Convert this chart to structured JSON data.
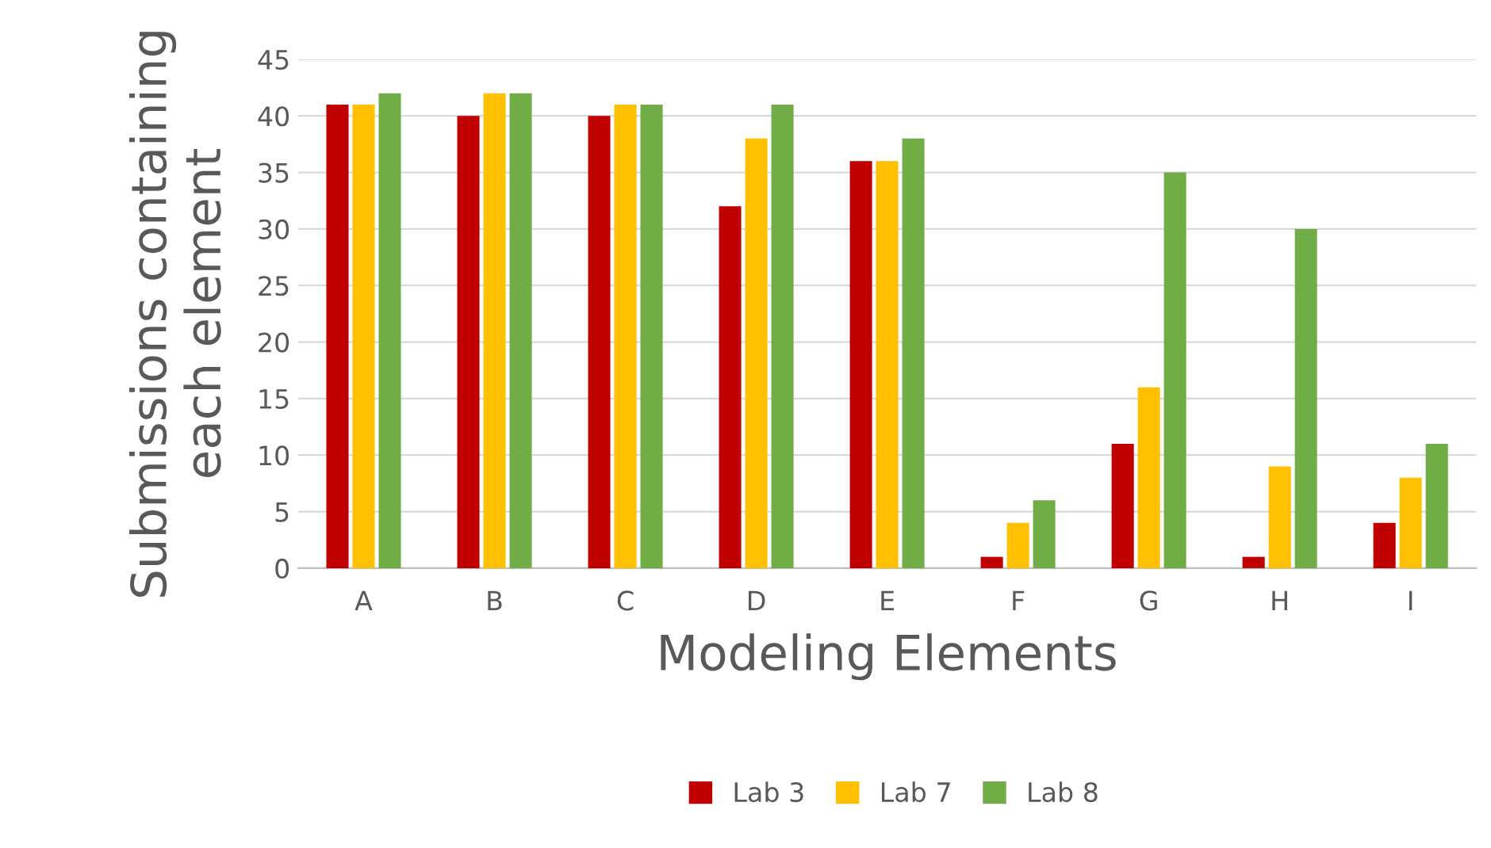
{
  "chart_data": {
    "type": "bar",
    "xlabel": "Modeling Elements",
    "ylabel": "Submissions containing\neach element",
    "categories": [
      "A",
      "B",
      "C",
      "D",
      "E",
      "F",
      "G",
      "H",
      "I"
    ],
    "series": [
      {
        "name": "Lab 3",
        "color": "#c00000",
        "values": [
          41,
          40,
          40,
          32,
          36,
          1,
          11,
          1,
          4
        ]
      },
      {
        "name": "Lab 7",
        "color": "#ffc000",
        "values": [
          41,
          42,
          41,
          38,
          36,
          4,
          16,
          9,
          8
        ]
      },
      {
        "name": "Lab 8",
        "color": "#70ad47",
        "values": [
          42,
          42,
          41,
          41,
          38,
          6,
          35,
          30,
          11
        ]
      }
    ],
    "ylim": [
      0,
      45
    ],
    "yticks": [
      0,
      5,
      10,
      15,
      20,
      25,
      30,
      35,
      40,
      45
    ],
    "grid": "y",
    "legend": "bottom"
  }
}
